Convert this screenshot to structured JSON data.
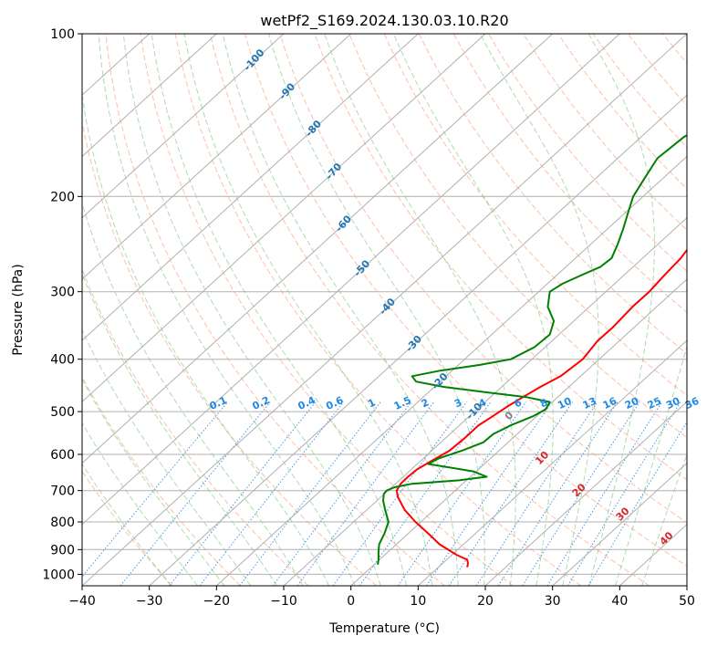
{
  "chart_data": {
    "type": "line",
    "title": "wetPf2_S169.2024.130.03.10.R20",
    "xlabel": "Temperature (°C)",
    "ylabel": "Pressure (hPa)",
    "xlim": [
      -40,
      50
    ],
    "ylim": [
      1050,
      100
    ],
    "y_scale": "log",
    "grid": true,
    "x_ticks": [
      "−40",
      "−30",
      "−20",
      "−10",
      "0",
      "10",
      "20",
      "30",
      "40",
      "50"
    ],
    "y_ticks": [
      "100",
      "200",
      "300",
      "400",
      "500",
      "600",
      "700",
      "800",
      "900",
      "1000"
    ],
    "isotherm_labels": [
      "-100",
      "-90",
      "-80",
      "-70",
      "-60",
      "-50",
      "-40",
      "-30",
      "-20",
      "-10"
    ],
    "mixing_ratio_labels": [
      "0.1",
      "0.2",
      "0.4",
      "0.6",
      "1",
      "1.5",
      "2",
      "3",
      "4",
      "6",
      "8",
      "10",
      "13",
      "16",
      "20",
      "25",
      "30",
      "36"
    ],
    "moist_adiabat_labels": [
      "0",
      "10",
      "20",
      "30",
      "40"
    ],
    "colors": {
      "temperature": "#ff0000",
      "dewpoint": "#008000",
      "isotherm_label": "#1f77b4",
      "mixing_ratio": "#1e88e5",
      "dry_adiabat": "#ff7f50",
      "moist_adiabat": "#4caf50",
      "moist_label": "#d62728",
      "zero_label": "#808080",
      "grid": "#b0b0b0"
    },
    "series": [
      {
        "key": "temperature",
        "p": [
          970,
          960,
          950,
          940,
          920,
          880,
          840,
          800,
          760,
          720,
          700,
          680,
          660,
          640,
          620,
          590,
          560,
          530,
          510,
          490,
          470,
          450,
          430,
          400,
          370,
          350,
          320,
          300,
          280,
          260,
          240,
          225,
          210,
          200,
          195,
          185,
          170,
          150,
          130,
          115,
          105,
          100
        ],
        "x": [
          17.3,
          17.4,
          17.4,
          17.3,
          15.7,
          13.2,
          11.5,
          9.6,
          8.0,
          7.0,
          6.8,
          7.4,
          8.5,
          9.8,
          11.7,
          14.7,
          16.9,
          19.0,
          21.1,
          23.2,
          25.6,
          28.2,
          31.2,
          34.5,
          36.7,
          38.9,
          41.9,
          44.4,
          46.6,
          49.1,
          51.2,
          53.3,
          55.2,
          57.4,
          60.6,
          65.0,
          71.0,
          78.4,
          84.6,
          91.3,
          94.9,
          97.1
        ]
      },
      {
        "key": "dewpoint",
        "p": [
          960,
          940,
          910,
          880,
          840,
          800,
          760,
          730,
          710,
          700,
          690,
          680,
          670,
          660,
          645,
          625,
          610,
          590,
          570,
          550,
          530,
          510,
          495,
          480,
          470,
          460,
          450,
          440,
          430,
          420,
          410,
          400,
          380,
          360,
          340,
          320,
          300,
          290,
          280,
          270,
          260,
          245,
          230,
          215,
          200,
          185,
          170,
          155,
          145,
          135,
          125,
          115,
          108,
          100
        ],
        "x": [
          4.0,
          4.1,
          4.1,
          4.2,
          5.0,
          5.6,
          5.1,
          4.8,
          4.9,
          5.3,
          6.5,
          9.1,
          16.1,
          20.2,
          18.2,
          11.5,
          13.1,
          16.6,
          19.7,
          21.2,
          23.8,
          27.1,
          29.0,
          29.6,
          26.1,
          19.8,
          13.8,
          9.7,
          9.1,
          13.3,
          19.1,
          23.8,
          27.3,
          29.6,
          30.2,
          29.3,
          29.6,
          31.5,
          34.2,
          37.1,
          38.8,
          39.7,
          40.5,
          41.2,
          42.0,
          43.7,
          45.6,
          49.6,
          54.3,
          58.9,
          63.3,
          67.8,
          71.9,
          76.1
        ]
      }
    ]
  }
}
